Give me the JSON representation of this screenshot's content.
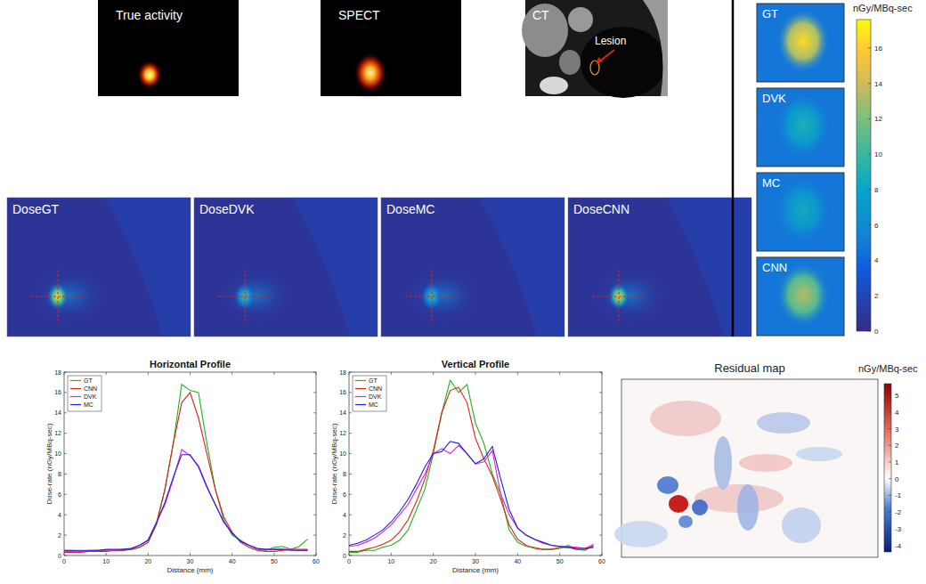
{
  "images": {
    "true_activity": "True activity",
    "spect": "SPECT",
    "ct": "CT",
    "lesion": "Lesion"
  },
  "dose_maps": [
    "DoseGT",
    "DoseDVK",
    "DoseMC",
    "DoseCNN"
  ],
  "zoom_panels": [
    "GT",
    "DVK",
    "MC",
    "CNN"
  ],
  "dose_colorbar": {
    "label": "nGy/MBq-sec",
    "range": [
      0,
      17.6
    ],
    "ticks": [
      0,
      2,
      4,
      6,
      8,
      10,
      12,
      14,
      16
    ]
  },
  "residual": {
    "title": "Residual map",
    "colorbar": {
      "label": "nGy/MBq-sec",
      "range": [
        -4.4,
        5.7
      ],
      "ticks": [
        -4,
        -3,
        -2,
        -1,
        0,
        1,
        2,
        3,
        4,
        5
      ]
    }
  },
  "chart_data": [
    {
      "type": "line",
      "title": "Horizontal Profile",
      "x_label": "Distance (mm)",
      "y_label": "Dose-rate (nGy/MBq-sec)",
      "x": [
        0,
        2,
        4,
        6,
        8,
        10,
        12,
        14,
        16,
        18,
        20,
        22,
        24,
        26,
        28,
        30,
        32,
        34,
        36,
        38,
        40,
        42,
        44,
        46,
        48,
        50,
        52,
        54,
        56,
        58
      ],
      "xlim": [
        0,
        60
      ],
      "ylim": [
        0,
        18
      ],
      "xticks": [
        0,
        10,
        20,
        30,
        40,
        50,
        60
      ],
      "yticks": [
        0,
        2,
        4,
        6,
        8,
        10,
        12,
        14,
        16,
        18
      ],
      "legend": "upper-left",
      "grid": false,
      "series": [
        {
          "name": "GT",
          "color": "#1fb21f",
          "values": [
            0.4,
            0.4,
            0.4,
            0.4,
            0.5,
            0.5,
            0.5,
            0.5,
            0.6,
            0.8,
            1.3,
            3,
            6.5,
            11,
            16.8,
            16.2,
            16,
            11,
            6.5,
            3.5,
            2,
            1.5,
            1,
            0.6,
            0.5,
            0.8,
            0.9,
            0.6,
            0.9,
            1.6
          ]
        },
        {
          "name": "CNN",
          "color": "#e01f1f",
          "values": [
            0.3,
            0.3,
            0.3,
            0.4,
            0.4,
            0.4,
            0.5,
            0.5,
            0.6,
            0.8,
            1.3,
            3.2,
            6.5,
            11,
            15,
            16,
            13.5,
            10,
            6.5,
            3.8,
            2.3,
            1.3,
            0.8,
            0.5,
            0.4,
            0.4,
            0.5,
            0.6,
            0.6,
            0.6
          ]
        },
        {
          "name": "DVK",
          "color": "#e01fe0",
          "values": [
            0.5,
            0.5,
            0.4,
            0.5,
            0.5,
            0.5,
            0.5,
            0.6,
            0.7,
            1,
            1.5,
            3.3,
            5,
            7.5,
            10.4,
            9.8,
            8.8,
            6.8,
            5,
            3.3,
            2.2,
            1.4,
            1,
            0.7,
            0.6,
            0.6,
            0.6,
            0.6,
            0.5,
            0.5
          ]
        },
        {
          "name": "MC",
          "color": "#1f1fe0",
          "values": [
            0.5,
            0.5,
            0.5,
            0.5,
            0.5,
            0.6,
            0.6,
            0.6,
            0.7,
            1,
            1.5,
            3.2,
            5.2,
            7.7,
            9.9,
            9.9,
            8.7,
            6.7,
            5,
            3.3,
            2.2,
            1.4,
            1,
            0.7,
            0.6,
            0.6,
            0.6,
            0.5,
            0.5,
            0.5
          ]
        }
      ]
    },
    {
      "type": "line",
      "title": "Vertical Profile",
      "x_label": "Distance (mm)",
      "y_label": "Dose-rate (nGy/MBq-sec)",
      "x": [
        0,
        2,
        4,
        6,
        8,
        10,
        12,
        14,
        16,
        18,
        20,
        22,
        24,
        26,
        28,
        30,
        32,
        34,
        36,
        38,
        40,
        42,
        44,
        46,
        48,
        50,
        52,
        54,
        56,
        58
      ],
      "xlim": [
        0,
        60
      ],
      "ylim": [
        0,
        18
      ],
      "xticks": [
        0,
        10,
        20,
        30,
        40,
        50,
        60
      ],
      "yticks": [
        0,
        2,
        4,
        6,
        8,
        10,
        12,
        14,
        16,
        18
      ],
      "legend": "upper-left",
      "grid": false,
      "series": [
        {
          "name": "GT",
          "color": "#1fb21f",
          "values": [
            0.3,
            0.3,
            0.5,
            0.5,
            0.8,
            1,
            1.5,
            2.5,
            4.5,
            6.5,
            10,
            14,
            17.2,
            16,
            16.8,
            13,
            11,
            8,
            6,
            2.5,
            1.3,
            0.9,
            0.8,
            0.6,
            0.6,
            0.7,
            1,
            0.6,
            0.5,
            1
          ]
        },
        {
          "name": "CNN",
          "color": "#e01f1f",
          "values": [
            0.4,
            0.4,
            0.6,
            0.8,
            1.1,
            1.5,
            2.3,
            3.5,
            5.3,
            7.5,
            10.3,
            14,
            16.2,
            16.5,
            15,
            11.5,
            9.5,
            7.8,
            5.5,
            3,
            1.6,
            1,
            0.7,
            0.6,
            0.6,
            0.8,
            0.8,
            0.6,
            0.6,
            0.9
          ]
        },
        {
          "name": "DVK",
          "color": "#e01fe0",
          "values": [
            0.9,
            1,
            1.3,
            1.7,
            2.3,
            3,
            4,
            5,
            6.5,
            8,
            10,
            10.5,
            10,
            10.8,
            10,
            9,
            9.2,
            10.3,
            6,
            4,
            2.7,
            2,
            1.6,
            1.2,
            1,
            0.9,
            0.9,
            0.8,
            0.7,
            1.1
          ]
        },
        {
          "name": "MC",
          "color": "#1f1fe0",
          "values": [
            1,
            1.2,
            1.5,
            2,
            2.5,
            3.3,
            4.3,
            5.5,
            7,
            8.7,
            10,
            10.2,
            11.2,
            11,
            10,
            9,
            9.5,
            10.7,
            7.5,
            4.5,
            2.7,
            2,
            1.6,
            1.3,
            1,
            0.9,
            0.8,
            0.7,
            0.7,
            0.8
          ]
        }
      ]
    }
  ]
}
